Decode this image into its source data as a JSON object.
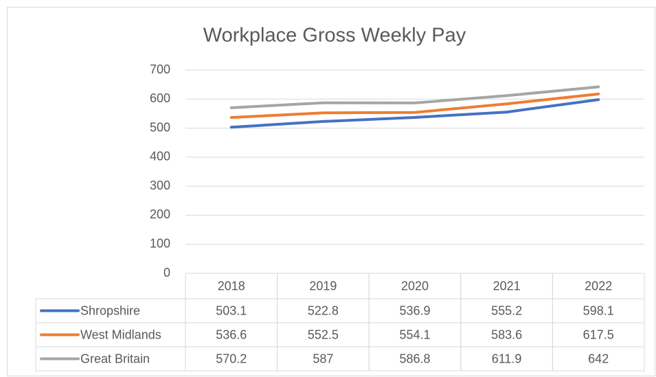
{
  "chart_data": {
    "type": "line",
    "title": "Workplace Gross Weekly Pay",
    "categories": [
      "2018",
      "2019",
      "2020",
      "2021",
      "2022"
    ],
    "series": [
      {
        "name": "Shropshire",
        "color": "#4472c4",
        "values": [
          503.1,
          522.8,
          536.9,
          555.2,
          598.1
        ]
      },
      {
        "name": "West Midlands",
        "color": "#ed7d31",
        "values": [
          536.6,
          552.5,
          554.1,
          583.6,
          617.5
        ]
      },
      {
        "name": "Great Britain",
        "color": "#a5a5a5",
        "values": [
          570.2,
          587,
          586.8,
          611.9,
          642
        ]
      }
    ],
    "ylim": [
      0,
      700
    ],
    "yticks": [
      0,
      100,
      200,
      300,
      400,
      500,
      600,
      700
    ],
    "grid": true,
    "data_table": true
  }
}
